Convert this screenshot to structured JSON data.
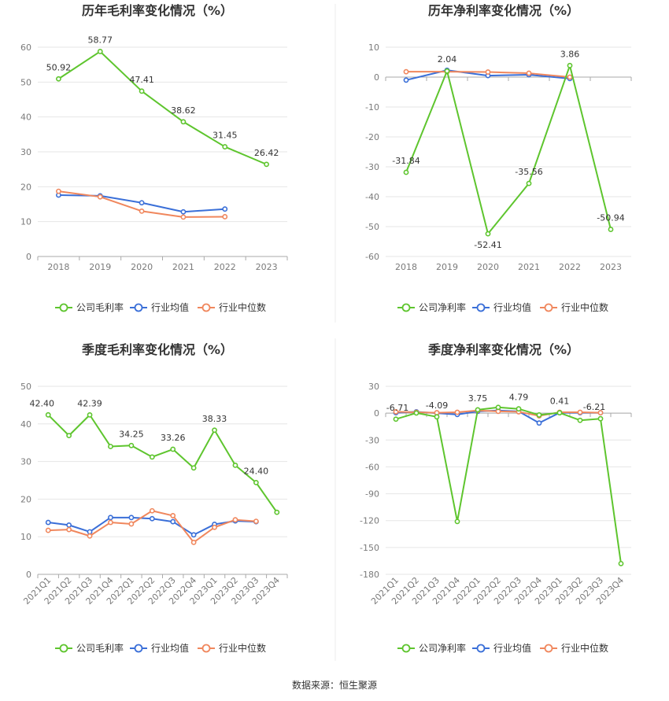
{
  "source": "数据来源：恒生聚源",
  "colors": {
    "company": "#5ec52e",
    "avg": "#3a6fd8",
    "median": "#f0875d",
    "grid": "#e6e6e6",
    "axis": "#aaaaaa"
  },
  "chart_data": [
    {
      "id": "annual-gross",
      "type": "line",
      "title": "历年毛利率变化情况（%）",
      "categories": [
        "2018",
        "2019",
        "2020",
        "2021",
        "2022",
        "2023"
      ],
      "ylim": [
        0,
        60
      ],
      "yticks": [
        0,
        10,
        20,
        30,
        40,
        50,
        60
      ],
      "grid": true,
      "legend": "bottom",
      "series": [
        {
          "name": "公司毛利率",
          "color": "company",
          "values": [
            50.92,
            58.77,
            47.41,
            38.62,
            31.45,
            26.42
          ],
          "labels": [
            "50.92",
            "58.77",
            "47.41",
            "38.62",
            "31.45",
            "26.42"
          ]
        },
        {
          "name": "行业均值",
          "color": "avg",
          "values": [
            17.6,
            17.4,
            15.4,
            12.8,
            13.6,
            null
          ]
        },
        {
          "name": "行业中位数",
          "color": "median",
          "values": [
            18.7,
            17.1,
            13.0,
            11.3,
            11.4,
            null
          ]
        }
      ]
    },
    {
      "id": "annual-net",
      "type": "line",
      "title": "历年净利率变化情况（%）",
      "categories": [
        "2018",
        "2019",
        "2020",
        "2021",
        "2022",
        "2023"
      ],
      "ylim": [
        -60,
        10
      ],
      "yticks": [
        -60,
        -50,
        -40,
        -30,
        -20,
        -10,
        0,
        10
      ],
      "grid": true,
      "legend": "bottom",
      "series": [
        {
          "name": "公司净利率",
          "color": "company",
          "values": [
            -31.84,
            2.04,
            -52.41,
            -35.56,
            3.86,
            -50.94
          ],
          "labels": [
            "-31.84",
            "2.04",
            "-52.41",
            "-35.56",
            "3.86",
            "-50.94"
          ]
        },
        {
          "name": "行业均值",
          "color": "avg",
          "values": [
            -1.0,
            2.3,
            0.5,
            0.8,
            -0.5,
            null
          ]
        },
        {
          "name": "行业中位数",
          "color": "median",
          "values": [
            1.8,
            1.8,
            1.7,
            1.3,
            0.0,
            null
          ]
        }
      ]
    },
    {
      "id": "quarterly-gross",
      "type": "line",
      "title": "季度毛利率变化情况（%）",
      "categories": [
        "2021Q1",
        "2021Q2",
        "2021Q3",
        "2021Q4",
        "2022Q1",
        "2022Q2",
        "2022Q3",
        "2022Q4",
        "2023Q1",
        "2023Q2",
        "2023Q3",
        "2023Q4"
      ],
      "ylim": [
        0,
        50
      ],
      "yticks": [
        0,
        10,
        20,
        30,
        40,
        50
      ],
      "grid": true,
      "legend": "bottom",
      "series": [
        {
          "name": "公司毛利率",
          "color": "company",
          "values": [
            42.4,
            36.9,
            42.39,
            34.0,
            34.25,
            31.2,
            33.26,
            28.3,
            38.33,
            29.0,
            24.4,
            16.5
          ],
          "labels": [
            "42.40",
            "",
            "42.39",
            "",
            "34.25",
            "",
            "33.26",
            "",
            "38.33",
            "",
            "24.40",
            ""
          ]
        },
        {
          "name": "行业均值",
          "color": "avg",
          "values": [
            13.8,
            13.1,
            11.3,
            15.1,
            15.1,
            14.8,
            14.0,
            10.5,
            13.3,
            14.2,
            14.0,
            null
          ]
        },
        {
          "name": "行业中位数",
          "color": "median",
          "values": [
            11.7,
            11.9,
            10.2,
            13.8,
            13.4,
            16.9,
            15.6,
            8.5,
            12.5,
            14.5,
            14.1,
            null
          ]
        }
      ]
    },
    {
      "id": "quarterly-net",
      "type": "line",
      "title": "季度净利率变化情况（%）",
      "categories": [
        "2021Q1",
        "2021Q2",
        "2021Q3",
        "2021Q4",
        "2022Q1",
        "2022Q2",
        "2022Q3",
        "2022Q4",
        "2023Q1",
        "2023Q2",
        "2023Q3",
        "2023Q4"
      ],
      "ylim": [
        -180,
        30
      ],
      "yticks": [
        -180,
        -150,
        -120,
        -90,
        -60,
        -30,
        0,
        30
      ],
      "grid": true,
      "legend": "bottom",
      "series": [
        {
          "name": "公司净利率",
          "color": "company",
          "values": [
            -6.71,
            0.2,
            -4.09,
            -121.0,
            3.75,
            6.5,
            4.79,
            -2.0,
            0.41,
            -8.0,
            -6.21,
            -168.0
          ],
          "labels": [
            "-6.71",
            "",
            "-4.09",
            "",
            "3.75",
            "",
            "4.79",
            "",
            "0.41",
            "",
            "-6.21",
            ""
          ]
        },
        {
          "name": "行业均值",
          "color": "avg",
          "values": [
            0.5,
            1.5,
            0.0,
            -1.5,
            2.0,
            3.0,
            2.0,
            -11.0,
            0.5,
            0.5,
            0.5,
            null
          ]
        },
        {
          "name": "行业中位数",
          "color": "median",
          "values": [
            1.5,
            1.0,
            0.5,
            1.0,
            3.0,
            2.0,
            1.5,
            -3.0,
            1.0,
            1.0,
            0.5,
            null
          ]
        }
      ]
    }
  ]
}
